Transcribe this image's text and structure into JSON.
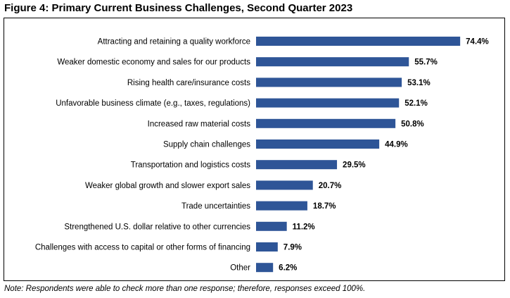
{
  "figure": {
    "title": "Figure 4: Primary Current Business Challenges, Second Quarter 2023",
    "note": "Note: Respondents were able to check more than one response; therefore, responses exceed 100%."
  },
  "chart_data": {
    "type": "bar",
    "orientation": "horizontal",
    "title": "Figure 4: Primary Current Business Challenges, Second Quarter 2023",
    "categories": [
      "Attracting and retaining a quality workforce",
      "Weaker domestic economy and sales for our products",
      "Rising health care/insurance costs",
      "Unfavorable business climate (e.g., taxes, regulations)",
      "Increased raw material costs",
      "Supply chain challenges",
      "Transportation and logistics costs",
      "Weaker global growth and slower export sales",
      "Trade uncertainties",
      "Strengthened U.S. dollar relative to other currencies",
      "Challenges with access to capital or other forms of financing",
      "Other"
    ],
    "values": [
      74.4,
      55.7,
      53.1,
      52.1,
      50.8,
      44.9,
      29.5,
      20.7,
      18.7,
      11.2,
      7.9,
      6.2
    ],
    "value_labels": [
      "74.4%",
      "55.7%",
      "53.1%",
      "52.1%",
      "50.8%",
      "44.9%",
      "29.5%",
      "20.7%",
      "18.7%",
      "11.2%",
      "7.9%",
      "6.2%"
    ],
    "xlim": [
      0,
      80
    ],
    "grid": false,
    "axis_lines": false,
    "bar_color": "#2e5597"
  }
}
